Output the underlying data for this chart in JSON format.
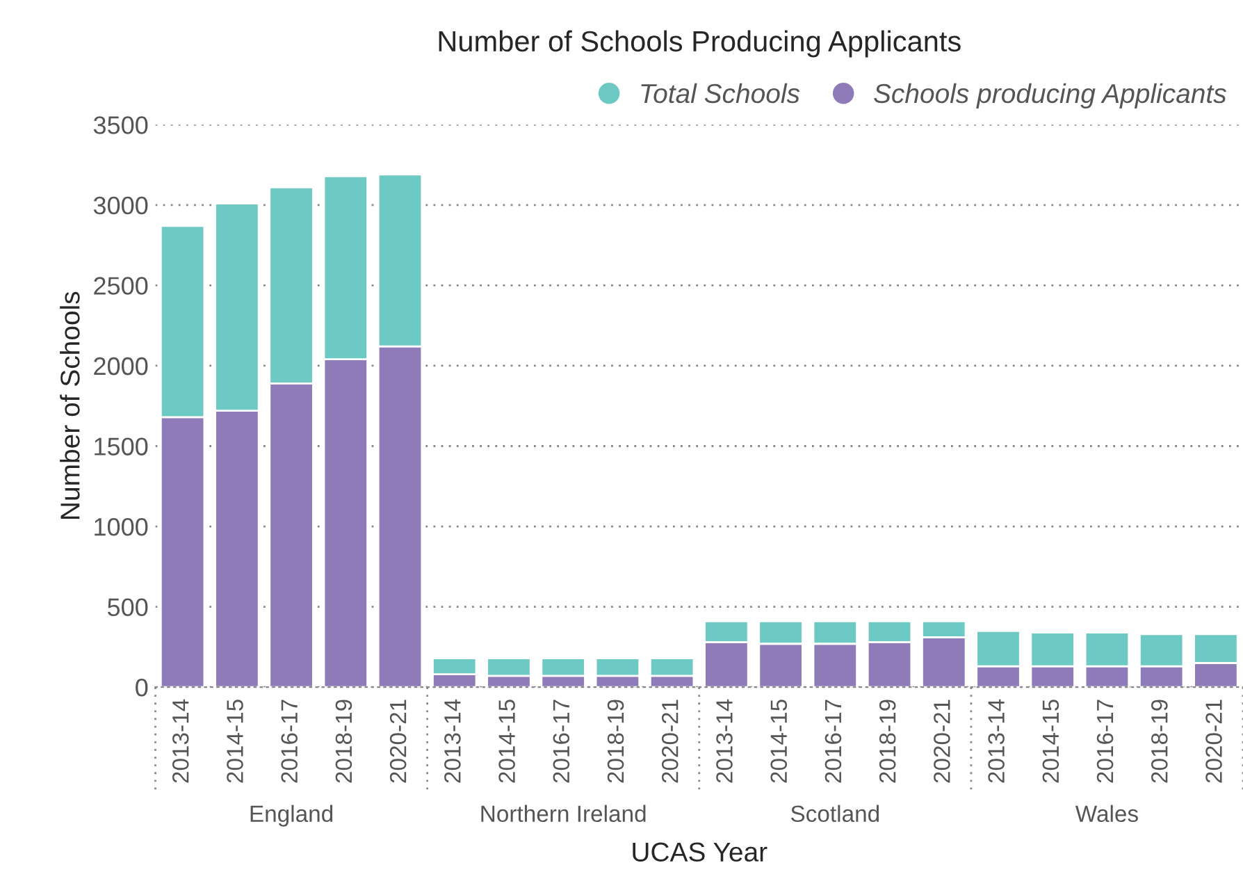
{
  "chart_data": {
    "type": "bar",
    "title": "Number of Schools Producing Applicants",
    "xlabel": "UCAS Year",
    "ylabel": "Number of Schools",
    "categories": [
      "2013-14",
      "2014-15",
      "2016-17",
      "2018-19",
      "2020-21",
      "2013-14",
      "2014-15",
      "2016-17",
      "2018-19",
      "2020-21",
      "2013-14",
      "2014-15",
      "2016-17",
      "2018-19",
      "2020-21",
      "2013-14",
      "2014-15",
      "2016-17",
      "2018-19",
      "2020-21"
    ],
    "stacked": true,
    "series": [
      {
        "name": "Schools producing Applicants",
        "color": "#8f7bb8",
        "values": [
          1680,
          1720,
          1890,
          2040,
          2120,
          80,
          70,
          70,
          70,
          70,
          280,
          270,
          270,
          280,
          310,
          130,
          130,
          130,
          130,
          150
        ]
      },
      {
        "name": "Total Schools",
        "color": "#6cc9c3",
        "values": [
          1190,
          1290,
          1220,
          1140,
          1070,
          100,
          110,
          110,
          110,
          110,
          130,
          140,
          140,
          130,
          100,
          220,
          210,
          210,
          200,
          180
        ]
      }
    ],
    "annotations": [
      "England",
      "Northern Ireland",
      "Scotland",
      "Wales"
    ],
    "ylim": [
      0,
      3500
    ],
    "yticks": [
      0,
      500,
      1000,
      1500,
      2000,
      2500,
      3000,
      3500
    ],
    "grid": "y",
    "legend": "top right"
  }
}
